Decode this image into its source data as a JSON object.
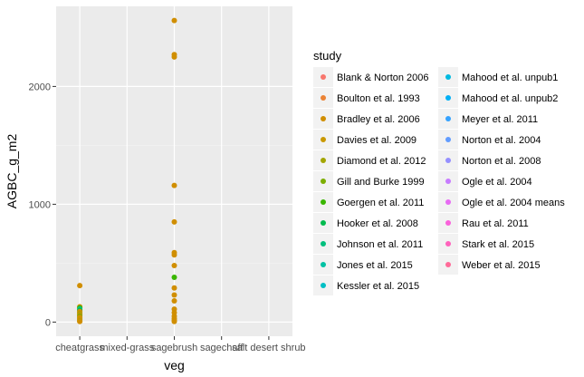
{
  "chart_data": {
    "type": "scatter",
    "xlabel": "veg",
    "ylabel": "AGBC_g_m2",
    "categories": [
      "cheatgrass",
      "mixed-grass",
      "sagebrush",
      "sagechaff",
      "salt desert shrub"
    ],
    "y_ticks": [
      0,
      1000,
      2000
    ],
    "ylim": [
      -120,
      2680
    ],
    "grid": true,
    "legend": {
      "title": "study",
      "placement": "right",
      "entries": [
        {
          "label": "Blank & Norton 2006",
          "color": "#F8766D"
        },
        {
          "label": "Boulton et al. 1993",
          "color": "#EB8335"
        },
        {
          "label": "Bradley et al. 2006",
          "color": "#D08E00"
        },
        {
          "label": "Davies et al. 2009",
          "color": "#C99800"
        },
        {
          "label": "Diamond et al. 2012",
          "color": "#A3A500"
        },
        {
          "label": "Gill and Burke 1999",
          "color": "#7CAE00"
        },
        {
          "label": "Goergen et al. 2011",
          "color": "#39B600"
        },
        {
          "label": "Hooker et al. 2008",
          "color": "#00BB4E"
        },
        {
          "label": "Johnson et al. 2011",
          "color": "#00BF7D"
        },
        {
          "label": "Jones et al. 2015",
          "color": "#00C1A3"
        },
        {
          "label": "Kessler et al. 2015",
          "color": "#00BFC4"
        },
        {
          "label": "Mahood et al. unpub1",
          "color": "#00BAE0"
        },
        {
          "label": "Mahood et al. unpub2",
          "color": "#00B0F6"
        },
        {
          "label": "Meyer et al. 2011",
          "color": "#35A2FF"
        },
        {
          "label": "Norton et al. 2004",
          "color": "#619CFF"
        },
        {
          "label": "Norton et al. 2008",
          "color": "#9590FF"
        },
        {
          "label": "Ogle et al. 2004",
          "color": "#C77CFF"
        },
        {
          "label": "Ogle et al. 2004 means",
          "color": "#E76BF3"
        },
        {
          "label": "Rau et al. 2011",
          "color": "#FA62DB"
        },
        {
          "label": "Stark et al. 2015",
          "color": "#FF62BC"
        },
        {
          "label": "Weber et al. 2015",
          "color": "#FF6A98"
        }
      ]
    },
    "points": [
      {
        "x": "cheatgrass",
        "y": 310,
        "color": "#D08E00"
      },
      {
        "x": "cheatgrass",
        "y": 130,
        "color": "#D08E00"
      },
      {
        "x": "cheatgrass",
        "y": 120,
        "color": "#39B600"
      },
      {
        "x": "cheatgrass",
        "y": 110,
        "color": "#00C1A3"
      },
      {
        "x": "cheatgrass",
        "y": 100,
        "color": "#00BB4E"
      },
      {
        "x": "cheatgrass",
        "y": 90,
        "color": "#D08E00"
      },
      {
        "x": "cheatgrass",
        "y": 80,
        "color": "#D08E00"
      },
      {
        "x": "cheatgrass",
        "y": 70,
        "color": "#A3A500"
      },
      {
        "x": "cheatgrass",
        "y": 60,
        "color": "#D08E00"
      },
      {
        "x": "cheatgrass",
        "y": 50,
        "color": "#7CAE00"
      },
      {
        "x": "cheatgrass",
        "y": 40,
        "color": "#D08E00"
      },
      {
        "x": "cheatgrass",
        "y": 30,
        "color": "#C99800"
      },
      {
        "x": "cheatgrass",
        "y": 20,
        "color": "#D08E00"
      },
      {
        "x": "cheatgrass",
        "y": 10,
        "color": "#A3A500"
      },
      {
        "x": "cheatgrass",
        "y": 5,
        "color": "#D08E00"
      },
      {
        "x": "sagebrush",
        "y": 2560,
        "color": "#D08E00"
      },
      {
        "x": "sagebrush",
        "y": 2270,
        "color": "#D08E00"
      },
      {
        "x": "sagebrush",
        "y": 2250,
        "color": "#D08E00"
      },
      {
        "x": "sagebrush",
        "y": 1160,
        "color": "#D08E00"
      },
      {
        "x": "sagebrush",
        "y": 850,
        "color": "#D08E00"
      },
      {
        "x": "sagebrush",
        "y": 590,
        "color": "#D08E00"
      },
      {
        "x": "sagebrush",
        "y": 570,
        "color": "#D08E00"
      },
      {
        "x": "sagebrush",
        "y": 480,
        "color": "#D08E00"
      },
      {
        "x": "sagebrush",
        "y": 380,
        "color": "#39B600"
      },
      {
        "x": "sagebrush",
        "y": 290,
        "color": "#D08E00"
      },
      {
        "x": "sagebrush",
        "y": 230,
        "color": "#D08E00"
      },
      {
        "x": "sagebrush",
        "y": 180,
        "color": "#D08E00"
      },
      {
        "x": "sagebrush",
        "y": 110,
        "color": "#D08E00"
      },
      {
        "x": "sagebrush",
        "y": 80,
        "color": "#D08E00"
      },
      {
        "x": "sagebrush",
        "y": 50,
        "color": "#D08E00"
      },
      {
        "x": "sagebrush",
        "y": 30,
        "color": "#D08E00"
      },
      {
        "x": "sagebrush",
        "y": 15,
        "color": "#D08E00"
      },
      {
        "x": "sagebrush",
        "y": 5,
        "color": "#D08E00"
      }
    ]
  }
}
